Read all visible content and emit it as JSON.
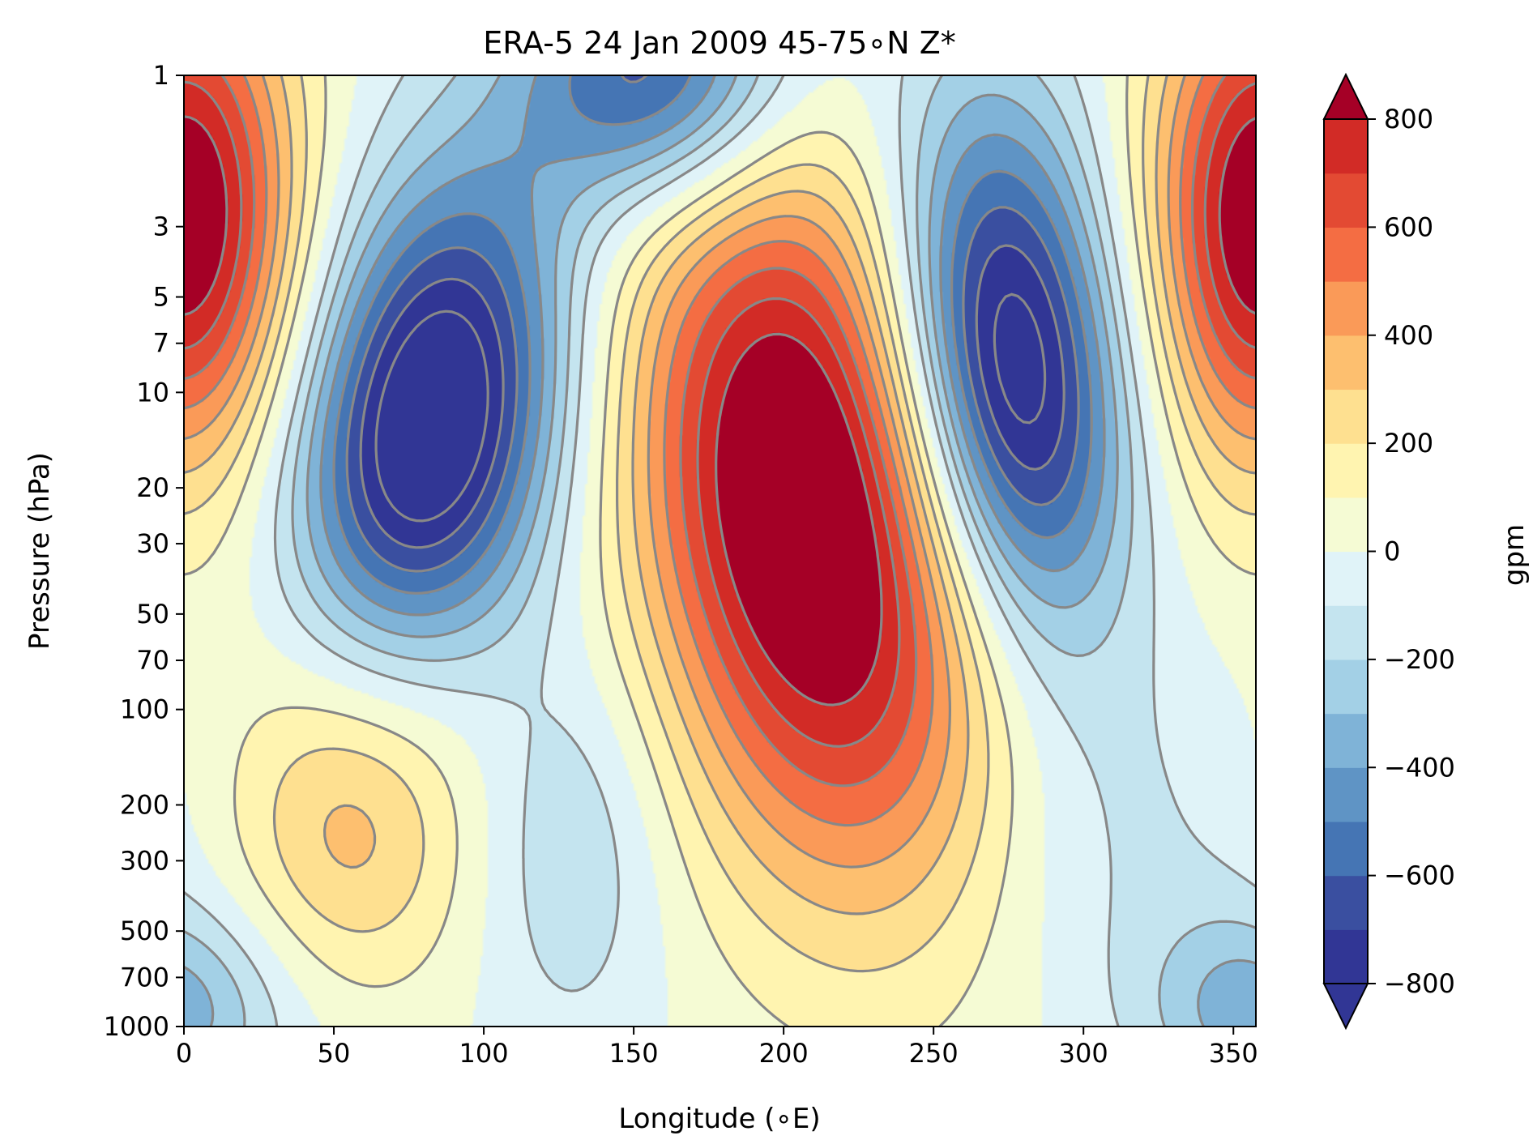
{
  "chart_data": {
    "type": "heatmap",
    "subtype": "filled-contour",
    "title": "ERA-5 24 Jan 2009 45-75$^\\circ$N Z*",
    "title_display": "ERA-5 24 Jan 2009 45-75∘N Z*",
    "xlabel": "Longitude (∘E)",
    "ylabel": "Pressure (hPa)",
    "x_range": [
      0,
      357.5
    ],
    "x_ticks": [
      0,
      50,
      100,
      150,
      200,
      250,
      300,
      350
    ],
    "y_scale": "log",
    "y_inverted": true,
    "y_range": [
      1000,
      1
    ],
    "y_ticks": [
      1,
      3,
      5,
      7,
      10,
      20,
      30,
      50,
      70,
      100,
      200,
      300,
      500,
      700,
      1000
    ],
    "colorbar": {
      "label": "gpm",
      "extend": "both",
      "levels": [
        -800,
        -700,
        -600,
        -500,
        -400,
        -300,
        -200,
        -100,
        0,
        100,
        200,
        300,
        400,
        500,
        600,
        700,
        800
      ],
      "ticks": [
        -800,
        -600,
        -400,
        -200,
        0,
        200,
        400,
        600,
        800
      ],
      "tick_labels": [
        "−800",
        "−600",
        "−400",
        "−200",
        "0",
        "200",
        "400",
        "600",
        "800"
      ],
      "colors": [
        "#313695",
        "#3a4fa0",
        "#4575b4",
        "#5f94c5",
        "#7fb3d7",
        "#a3d0e6",
        "#c4e4ef",
        "#e0f3f8",
        "#f5fbd4",
        "#fff4b0",
        "#fee090",
        "#fdbf6f",
        "#fa9a58",
        "#f46d43",
        "#e34a33",
        "#d22b26",
        "#b10f26"
      ],
      "under_color": "#313695",
      "over_color": "#a50026"
    },
    "contours": {
      "color": "#888888",
      "negative_style": "dashed",
      "positive_style": "solid",
      "interval": 100
    },
    "features": [
      {
        "kind": "high",
        "lon": 0,
        "p": 4,
        "value": 800
      },
      {
        "kind": "high",
        "lon": 355,
        "p": 4,
        "value": 800
      },
      {
        "kind": "low",
        "lon": 85,
        "p": 12,
        "value": -850
      },
      {
        "kind": "low",
        "lon": 165,
        "p": 1,
        "value": -700
      },
      {
        "kind": "high",
        "lon": 205,
        "p": 22,
        "value": 850
      },
      {
        "kind": "low",
        "lon": 275,
        "p": 8,
        "value": -850
      },
      {
        "kind": "high",
        "lon": 55,
        "p": 300,
        "value": 300
      }
    ]
  }
}
